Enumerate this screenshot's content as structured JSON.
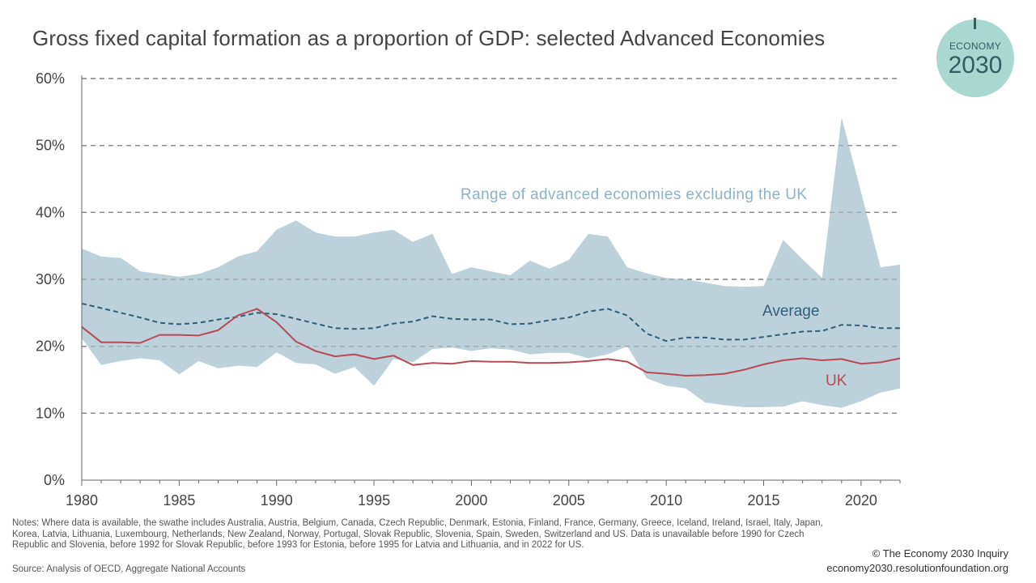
{
  "title": "Gross fixed capital formation as a proportion of GDP: selected Advanced Economies",
  "logo": {
    "top": "ECONOMY",
    "bottom": "2030"
  },
  "notes": "Notes: Where data is available, the swathe includes Australia, Austria, Belgium, Canada, Czech Republic, Denmark, Estonia, Finland, France, Germany, Greece, Iceland, Ireland, Israel, Italy, Japan, Korea, Latvia, Lithuania, Luxembourg, Netherlands, New Zealand, Norway, Portugal, Slovak Republic, Slovenia, Spain, Sweden, Switzerland and US. Data is unavailable before 1990 for Czech Republic and Slovenia, before 1992 for Slovak Republic, before 1993 for Estonia, before 1995 for Latvia and Lithuania, and in 2022 for US.",
  "source": "Source: Analysis of OECD, Aggregate National Accounts",
  "credit": {
    "line1": "© The Economy 2030 Inquiry",
    "line2": "economy2030.resolutionfoundation.org"
  },
  "colors": {
    "range": "#bdd1da",
    "average": "#2e5f7a",
    "uk": "#b94a55",
    "range_label": "#8eb2c4",
    "grid": "#888888"
  },
  "chart_data": {
    "type": "area",
    "x": [
      1980,
      1981,
      1982,
      1983,
      1984,
      1985,
      1986,
      1987,
      1988,
      1989,
      1990,
      1991,
      1992,
      1993,
      1994,
      1995,
      1996,
      1997,
      1998,
      1999,
      2000,
      2001,
      2002,
      2003,
      2004,
      2005,
      2006,
      2007,
      2008,
      2009,
      2010,
      2011,
      2012,
      2013,
      2014,
      2015,
      2016,
      2017,
      2018,
      2019,
      2020,
      2021,
      2022
    ],
    "ylim": [
      0,
      60
    ],
    "yticks": [
      "0%",
      "10%",
      "20%",
      "30%",
      "40%",
      "50%",
      "60%"
    ],
    "xticks": [
      "1980",
      "1985",
      "1990",
      "1995",
      "2000",
      "2005",
      "2010",
      "2015",
      "2020"
    ],
    "grid": "horizontal dashed",
    "range": {
      "label": "Range of advanced economies excluding the UK",
      "upper": [
        34.6,
        33.4,
        33.2,
        31.2,
        30.8,
        30.4,
        30.8,
        31.8,
        33.4,
        34.2,
        37.4,
        38.8,
        37.0,
        36.4,
        36.4,
        37.0,
        37.4,
        35.6,
        36.8,
        30.8,
        31.8,
        31.2,
        30.6,
        32.8,
        31.6,
        32.9,
        36.8,
        36.4,
        31.8,
        30.9,
        30.2,
        30.0,
        29.5,
        29.0,
        28.9,
        29.0,
        35.9,
        33.0,
        30.2,
        54.2,
        43.0,
        31.8,
        32.2
      ],
      "lower": [
        21.2,
        17.2,
        17.8,
        18.2,
        17.9,
        15.8,
        17.8,
        16.7,
        17.1,
        16.9,
        19.1,
        17.5,
        17.3,
        15.9,
        16.9,
        14.1,
        18.1,
        17.6,
        19.6,
        19.8,
        19.3,
        19.7,
        19.5,
        18.8,
        19.0,
        19.0,
        18.2,
        18.8,
        20.0,
        15.2,
        14.1,
        13.7,
        11.6,
        11.2,
        10.9,
        10.9,
        11.0,
        11.8,
        11.2,
        10.8,
        11.8,
        13.1,
        13.7
      ]
    },
    "series": [
      {
        "name": "Average",
        "values": [
          26.4,
          25.7,
          25.0,
          24.3,
          23.5,
          23.3,
          23.5,
          24.0,
          24.4,
          25.0,
          24.8,
          24.1,
          23.4,
          22.7,
          22.6,
          22.7,
          23.4,
          23.7,
          24.5,
          24.1,
          24.0,
          24.0,
          23.3,
          23.4,
          23.9,
          24.3,
          25.2,
          25.6,
          24.6,
          21.9,
          20.8,
          21.3,
          21.3,
          21.0,
          21.0,
          21.4,
          21.8,
          22.2,
          22.3,
          23.2,
          23.1,
          22.7,
          22.7
        ]
      },
      {
        "name": "UK",
        "values": [
          22.9,
          20.6,
          20.6,
          20.5,
          21.7,
          21.7,
          21.6,
          22.4,
          24.6,
          25.6,
          23.6,
          20.7,
          19.3,
          18.5,
          18.8,
          18.1,
          18.6,
          17.2,
          17.5,
          17.4,
          17.8,
          17.7,
          17.7,
          17.5,
          17.5,
          17.6,
          17.8,
          18.1,
          17.7,
          16.1,
          15.9,
          15.6,
          15.7,
          15.9,
          16.5,
          17.3,
          17.9,
          18.2,
          17.9,
          18.1,
          17.4,
          17.6,
          18.2
        ]
      }
    ]
  }
}
